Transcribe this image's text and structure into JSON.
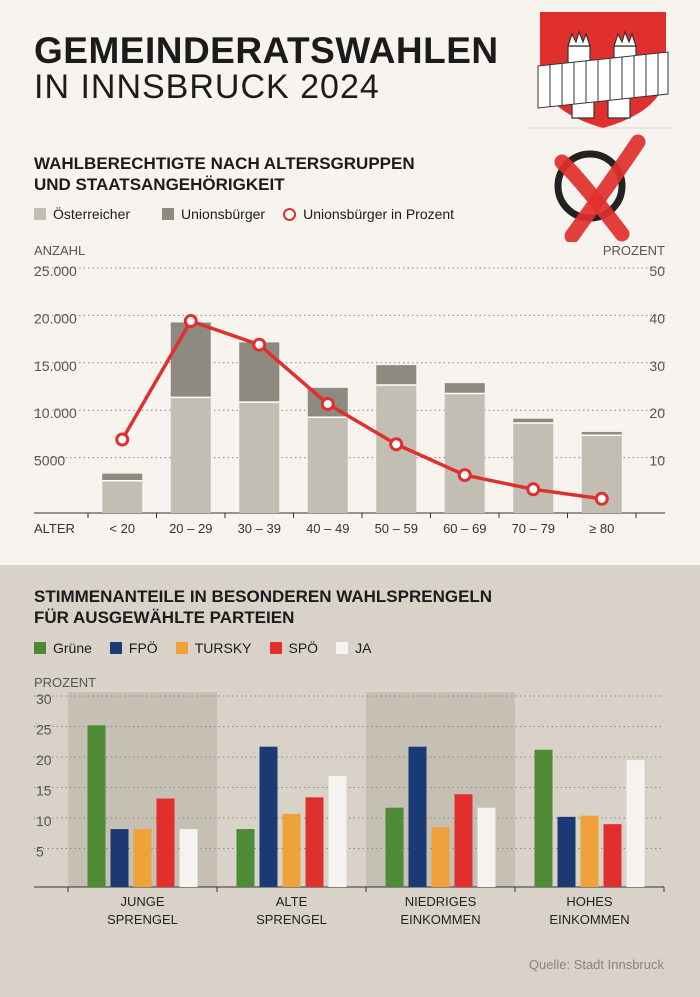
{
  "header": {
    "title_line1": "GEMEINDERATSWAHLEN",
    "title_line2": "IN INNSBRUCK 2024"
  },
  "icons": [
    "innsbruck-coat-of-arms-icon",
    "ballot-cross-icon"
  ],
  "colors": {
    "oesterreicher": "#c3beb4",
    "unionsbuerger": "#8e8a80",
    "prozent_line": "#e0302d",
    "gruene": "#4f8a36",
    "fpoe": "#1b3a73",
    "tursky": "#f0a23a",
    "spoe": "#e0302d",
    "ja": "#f5f3f0"
  },
  "section1": {
    "subtitle_line1": "WAHLBERECHTIGTE NACH ALTERSGRUPPEN",
    "subtitle_line2": "UND STAATSANGEHÖRIGKEIT",
    "legend": {
      "oesterreicher": "Österreicher",
      "unionsbuerger": "Unionsbürger",
      "prozent": "Unionsbürger in Prozent"
    }
  },
  "section2": {
    "subtitle_line1": "STIMMENANTEILE IN BESONDEREN WAHLSPRENGELN",
    "subtitle_line2": "FÜR AUSGEWÄHLTE PARTEIEN",
    "legend": [
      "Grüne",
      "FPÖ",
      "TURSKY",
      "SPÖ",
      "JA"
    ]
  },
  "source": "Quelle: Stadt Innsbruck",
  "chart_data": [
    {
      "type": "bar",
      "stacked": true,
      "secondary_line": true,
      "xlabel": "ALTER",
      "ylabel": "ANZAHL",
      "y2label": "PROZENT",
      "ylim": [
        0,
        25000
      ],
      "y2lim": [
        0,
        50
      ],
      "yticks": [
        "5000",
        "10.000",
        "15.000",
        "20.000",
        "25.000"
      ],
      "y2ticks": [
        "10",
        "20",
        "30",
        "40",
        "50"
      ],
      "categories": [
        "< 20",
        "20 – 29",
        "30 – 39",
        "40 – 49",
        "50 – 59",
        "60 – 69",
        "70 – 79",
        "≥ 80"
      ],
      "series": [
        {
          "name": "Österreicher",
          "values": [
            3400,
            12200,
            11700,
            10100,
            13500,
            12600,
            9500,
            8200
          ]
        },
        {
          "name": "Unionsbürger",
          "values": [
            750,
            7900,
            6300,
            3100,
            2100,
            1100,
            450,
            350
          ]
        },
        {
          "name": "Unionsbürger in Prozent",
          "axis": "right",
          "values": [
            15.5,
            40.5,
            35.5,
            23,
            14.5,
            8,
            5,
            3
          ]
        }
      ],
      "grid": true
    },
    {
      "type": "bar",
      "ylabel": "PROZENT",
      "ylim": [
        0,
        30
      ],
      "yticks": [
        "5",
        "10",
        "15",
        "20",
        "25",
        "30"
      ],
      "categories": [
        "JUNGE SPRENGEL",
        "ALTE SPRENGEL",
        "NIEDRIGES EINKOMMEN",
        "HOHES EINKOMMEN"
      ],
      "category_lines": [
        [
          "JUNGE",
          "SPRENGEL"
        ],
        [
          "ALTE",
          "SPRENGEL"
        ],
        [
          "NIEDRIGES",
          "EINKOMMEN"
        ],
        [
          "HOHES",
          "EINKOMMEN"
        ]
      ],
      "series": [
        {
          "name": "Grüne",
          "values": [
            26.5,
            9.5,
            13,
            22.5
          ]
        },
        {
          "name": "FPÖ",
          "values": [
            9.5,
            23,
            23,
            11.5
          ]
        },
        {
          "name": "TURSKY",
          "values": [
            9.5,
            12,
            9.8,
            11.7
          ]
        },
        {
          "name": "SPÖ",
          "values": [
            14.5,
            14.7,
            15.2,
            10.3
          ]
        },
        {
          "name": "JA",
          "values": [
            9.5,
            18.2,
            13,
            20.8
          ]
        }
      ],
      "grid": true
    }
  ]
}
